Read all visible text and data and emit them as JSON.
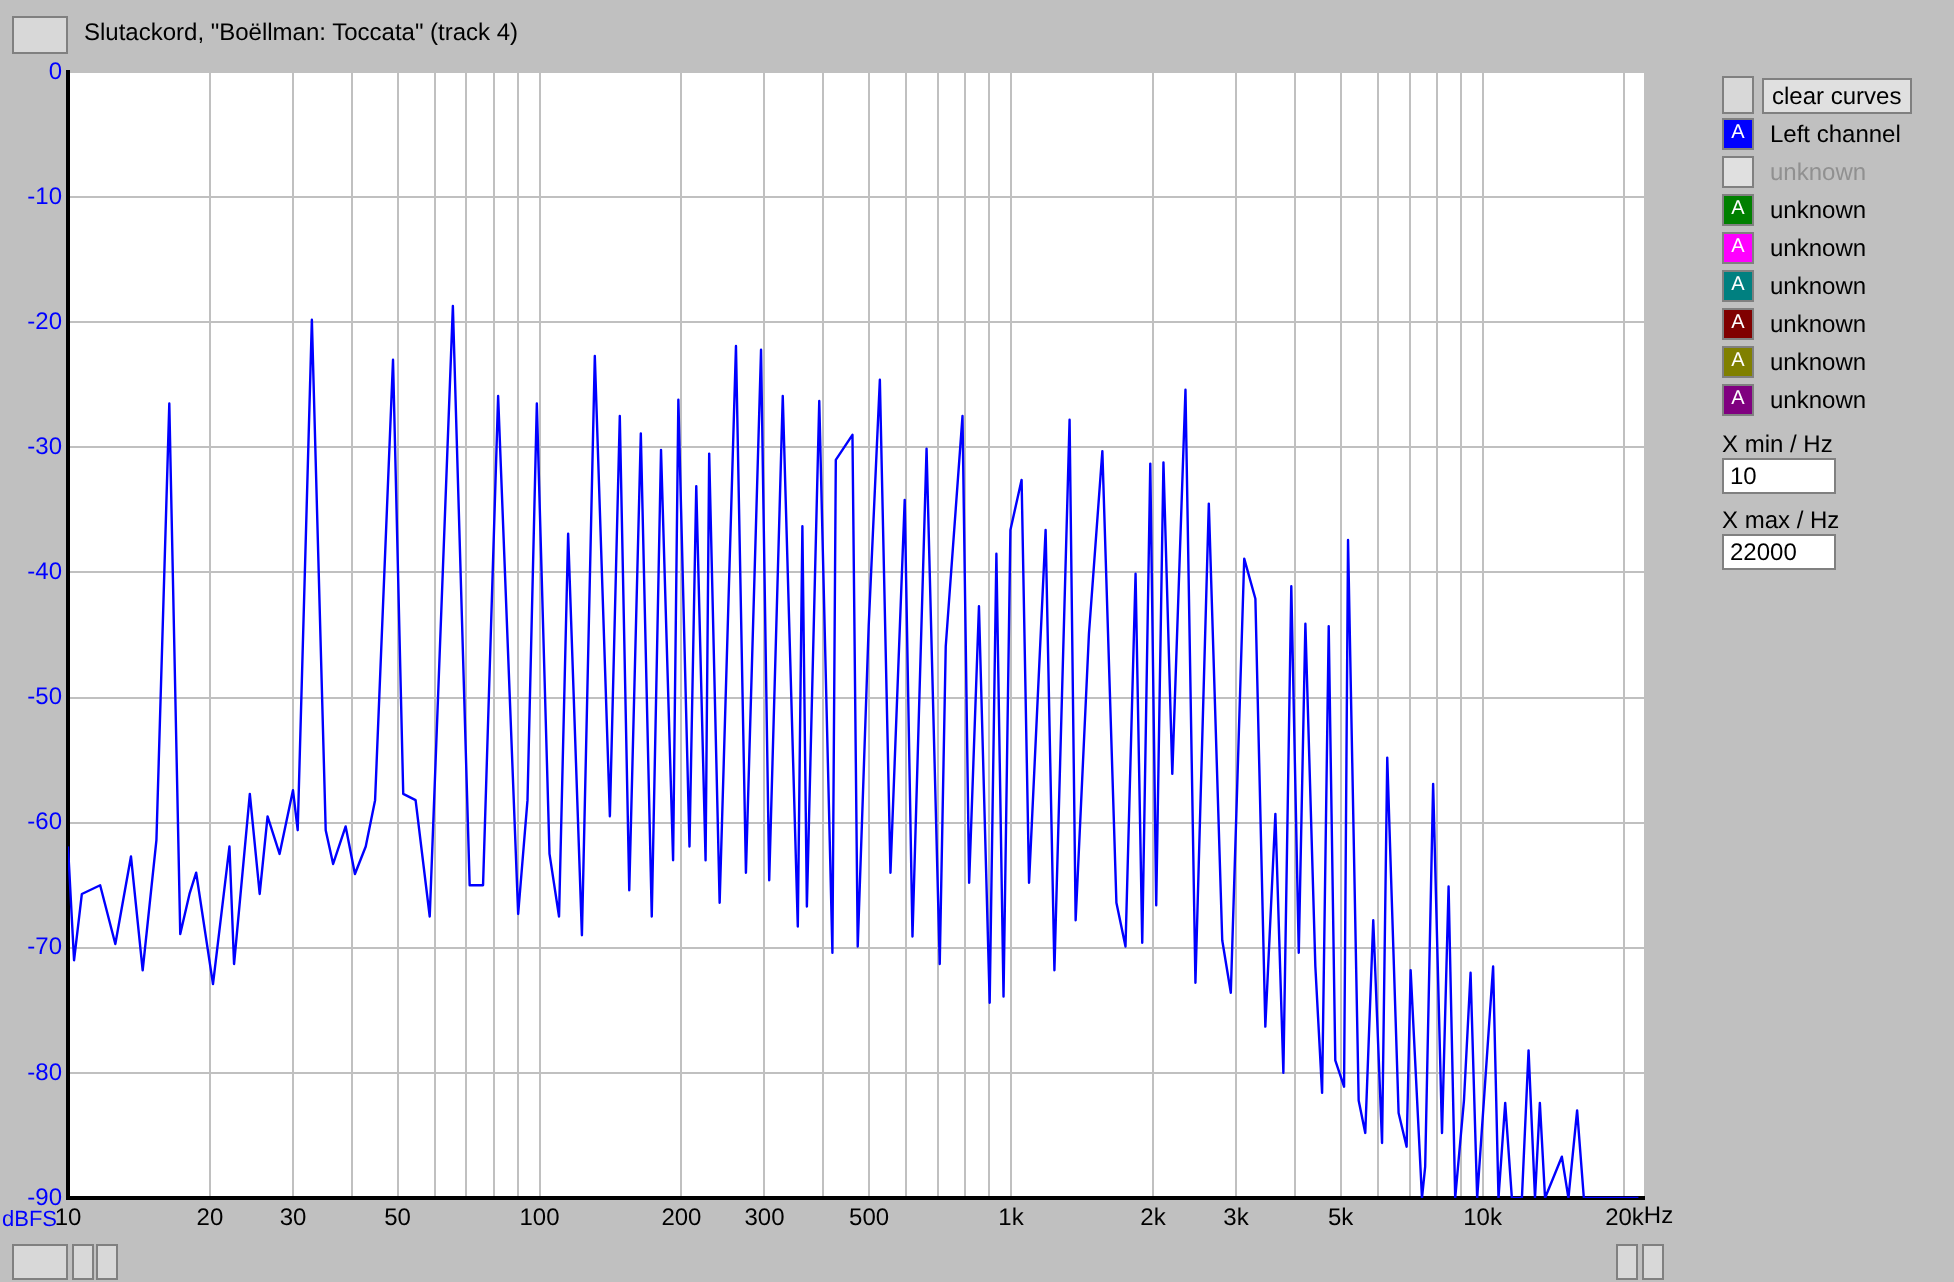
{
  "chart_data": {
    "type": "line",
    "title": "Slutackord, \"Boëllman: Toccata\" (track 4)",
    "ylabel": "dBFS",
    "log": "x",
    "grid": true,
    "legend": "right",
    "xlim": [
      10,
      22000
    ],
    "ylim": [
      -90,
      0
    ],
    "xticks": [
      10,
      20,
      30,
      {
        "value": 40,
        "label": null
      },
      50,
      {
        "value": 60,
        "label": null
      },
      {
        "value": 70,
        "label": null
      },
      {
        "value": 80,
        "label": null
      },
      {
        "value": 90,
        "label": null
      },
      100,
      200,
      300,
      {
        "value": 400,
        "label": null
      },
      500,
      {
        "value": 600,
        "label": null
      },
      {
        "value": 700,
        "label": null
      },
      {
        "value": 800,
        "label": null
      },
      {
        "value": 900,
        "label": null
      },
      {
        "value": 1000,
        "label": "1k"
      },
      {
        "value": 2000,
        "label": "2k"
      },
      {
        "value": 3000,
        "label": "3k"
      },
      {
        "value": 4000,
        "label": null
      },
      {
        "value": 5000,
        "label": "5k"
      },
      {
        "value": 6000,
        "label": null
      },
      {
        "value": 7000,
        "label": null
      },
      {
        "value": 8000,
        "label": null
      },
      {
        "value": 9000,
        "label": null
      },
      {
        "value": 10000,
        "label": "10k"
      },
      {
        "value": 20000,
        "label": "20k"
      }
    ],
    "xlabel": "Hz",
    "yticks": [
      0,
      -10,
      -20,
      -30,
      -40,
      -50,
      -60,
      -70,
      -80,
      -90
    ],
    "annotations": [
      "clear curves",
      "X min / Hz",
      "10",
      "X max / Hz",
      "22000",
      "A"
    ],
    "series": [
      {
        "name": "Left channel",
        "color": "#0000ff",
        "x": [
          10,
          10.3,
          10.7,
          11.7,
          12.6,
          13.6,
          14.4,
          15.4,
          16.4,
          17.3,
          18.1,
          18.7,
          20.3,
          22.0,
          22.5,
          24.3,
          25.5,
          26.5,
          28.1,
          30.0,
          30.7,
          32.9,
          35.2,
          36.5,
          38.8,
          40.6,
          42.8,
          44.8,
          48.9,
          51.4,
          54.6,
          58.5,
          65.5,
          71.1,
          75.9,
          81.7,
          90.1,
          94.3,
          98.7,
          105,
          110,
          115,
          123,
          131,
          141,
          148,
          155,
          164,
          173,
          181,
          192,
          197,
          208,
          215,
          225,
          229,
          241,
          261,
          274,
          295,
          307,
          328,
          353,
          361,
          369,
          392,
          418,
          425,
          461,
          473,
          499,
          527,
          555,
          595,
          618,
          662,
          706,
          727,
          789,
          815,
          855,
          901,
          931,
          964,
          997,
          1053,
          1092,
          1184,
          1236,
          1331,
          1371,
          1463,
          1562,
          1673,
          1749,
          1837,
          1898,
          1974,
          2032,
          2105,
          2198,
          2344,
          2461,
          2627,
          2805,
          2925,
          3123,
          3298,
          3462,
          3636,
          3781,
          3930,
          4076,
          4210,
          4420,
          4568,
          4718,
          4872,
          5085,
          5185,
          5461,
          5640,
          5864,
          6122,
          6279,
          6637,
          6902,
          7039,
          7440,
          7557,
          7856,
          8204,
          8472,
          8750,
          9133,
          9432,
          9741,
          10530,
          10810,
          11170,
          11540,
          12120,
          12520,
          12920,
          13230,
          13570,
          14730,
          15210,
          15870,
          16400,
          17050,
          21410
        ],
        "values": [
          -61.9,
          -71,
          -65.7,
          -65,
          -69.7,
          -62.7,
          -71.8,
          -61.4,
          -26.5,
          -68.9,
          -65.7,
          -64,
          -72.9,
          -61.9,
          -71.3,
          -57.7,
          -65.7,
          -59.5,
          -62.5,
          -57.4,
          -60.6,
          -19.8,
          -60.6,
          -63.3,
          -60.3,
          -64.1,
          -61.9,
          -58.2,
          -23,
          -57.7,
          -58.2,
          -67.5,
          -18.7,
          -65,
          -65,
          -25.9,
          -67.3,
          -58.2,
          -26.5,
          -62.5,
          -67.5,
          -36.9,
          -69,
          -22.7,
          -59.5,
          -27.5,
          -65.4,
          -28.9,
          -67.5,
          -30.2,
          -63,
          -26.2,
          -61.9,
          -33.1,
          -63,
          -30.5,
          -66.4,
          -21.9,
          -64,
          -22.2,
          -64.6,
          -25.9,
          -68.3,
          -36.3,
          -66.7,
          -26.3,
          -70.4,
          -31,
          -29,
          -69.9,
          -44.3,
          -24.6,
          -64,
          -34.2,
          -69.1,
          -30.1,
          -71.3,
          -45.9,
          -27.5,
          -64.8,
          -42.7,
          -74.4,
          -38.5,
          -73.9,
          -36.6,
          -32.6,
          -64.8,
          -36.6,
          -71.8,
          -27.8,
          -67.8,
          -44.9,
          -30.3,
          -66.4,
          -69.9,
          -40.1,
          -69.6,
          -31.3,
          -66.6,
          -31.2,
          -56.1,
          -25.4,
          -72.8,
          -34.5,
          -69.4,
          -73.6,
          -38.9,
          -42.1,
          -76.3,
          -59.3,
          -80,
          -41.1,
          -70.4,
          -44.1,
          -71.5,
          -81.6,
          -44.3,
          -79,
          -81.1,
          -37.4,
          -82.2,
          -84.8,
          -67.8,
          -85.6,
          -54.8,
          -83.2,
          -85.9,
          -71.8,
          -90,
          -87.5,
          -56.9,
          -84.8,
          -65.1,
          -90,
          -82.2,
          -72,
          -90,
          -71.5,
          -90,
          -82.4,
          -90,
          -90,
          -78.2,
          -90,
          -82.4,
          -90,
          -86.7,
          -90,
          -83,
          -90,
          -90,
          -90
        ]
      },
      {
        "name": "unknown",
        "color": "#e0e0e0"
      },
      {
        "name": "unknown",
        "color": "#008000"
      },
      {
        "name": "unknown",
        "color": "#ff00ff"
      },
      {
        "name": "unknown",
        "color": "#008080"
      },
      {
        "name": "unknown",
        "color": "#800000"
      },
      {
        "name": "unknown",
        "color": "#808000"
      },
      {
        "name": "unknown",
        "color": "#800080"
      }
    ]
  }
}
